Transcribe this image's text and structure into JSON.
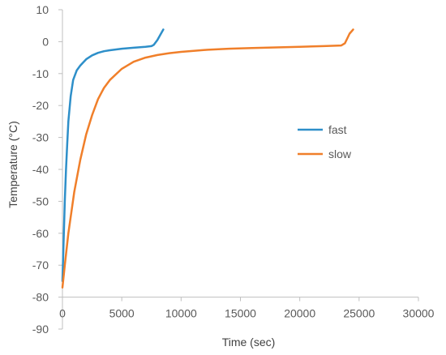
{
  "chart_data": {
    "type": "line",
    "title": "",
    "xlabel": "Time (sec)",
    "ylabel": "Temperature (°C)",
    "xlim": [
      0,
      30000
    ],
    "ylim": [
      -90,
      10
    ],
    "x_ticks": [
      0,
      5000,
      10000,
      15000,
      20000,
      25000,
      30000
    ],
    "y_ticks": [
      10,
      0,
      -10,
      -20,
      -30,
      -40,
      -50,
      -60,
      -70,
      -80,
      -90
    ],
    "grid": false,
    "legend_position": "right",
    "series": [
      {
        "name": "fast",
        "color": "#2E8FC9",
        "x": [
          0,
          100,
          200,
          300,
          400,
          500,
          700,
          900,
          1200,
          1500,
          2000,
          2500,
          3000,
          3500,
          4000,
          5000,
          6000,
          7000,
          7500,
          7700,
          8000,
          8300,
          8500
        ],
        "y": [
          -75,
          -62,
          -50,
          -40,
          -32,
          -25,
          -17,
          -12,
          -9,
          -7.5,
          -5.5,
          -4.3,
          -3.5,
          -3,
          -2.7,
          -2.2,
          -1.9,
          -1.6,
          -1.4,
          -1.0,
          0.5,
          2.5,
          3.8
        ]
      },
      {
        "name": "slow",
        "color": "#F07F2A",
        "x": [
          0,
          200,
          500,
          1000,
          1500,
          2000,
          2500,
          3000,
          3500,
          4000,
          5000,
          6000,
          7000,
          8000,
          9000,
          10000,
          12000,
          14000,
          16000,
          18000,
          20000,
          22000,
          23500,
          23800,
          24000,
          24200,
          24500
        ],
        "y": [
          -77,
          -70,
          -60,
          -47,
          -37,
          -29,
          -23,
          -18,
          -14.5,
          -12,
          -8.5,
          -6.3,
          -5,
          -4.2,
          -3.6,
          -3.2,
          -2.6,
          -2.2,
          -2.0,
          -1.8,
          -1.6,
          -1.4,
          -1.2,
          -0.5,
          1.0,
          2.5,
          3.8
        ]
      }
    ]
  }
}
